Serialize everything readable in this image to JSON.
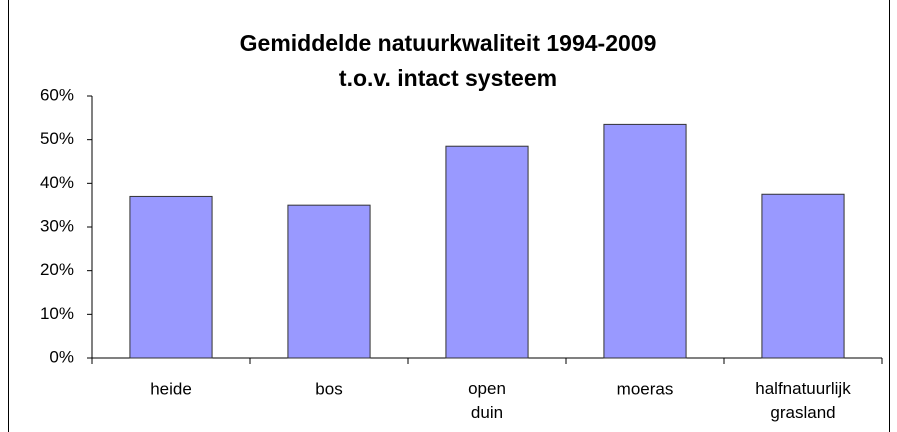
{
  "chart_data": {
    "type": "bar",
    "title": "Gemiddelde natuurkwaliteit 1994-2009",
    "subtitle": "t.o.v. intact systeem",
    "categories": [
      "heide",
      "bos",
      "open duin",
      "moeras",
      "halfnatuurlijk grasland"
    ],
    "values": [
      37,
      35,
      48.5,
      53.5,
      37.5
    ],
    "color": "#9999ff",
    "ylim": [
      0,
      60
    ],
    "yticks": [
      {
        "value": 0,
        "label": "0%"
      },
      {
        "value": 10,
        "label": "10%"
      },
      {
        "value": 20,
        "label": "20%"
      },
      {
        "value": 30,
        "label": "30%"
      },
      {
        "value": 40,
        "label": "40%"
      },
      {
        "value": 50,
        "label": "50%"
      },
      {
        "value": 60,
        "label": "60%"
      }
    ],
    "grid": false
  }
}
